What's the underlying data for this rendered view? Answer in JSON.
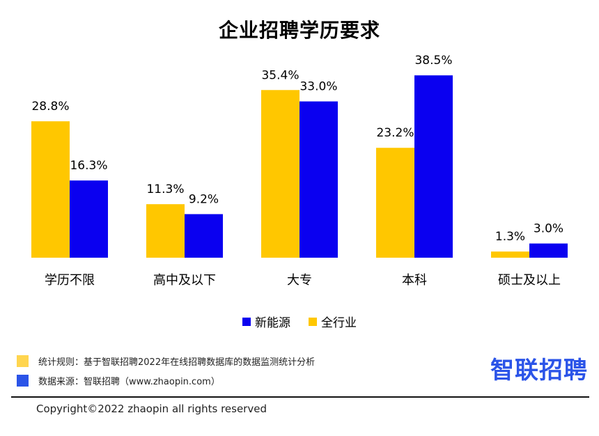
{
  "chart_data": {
    "type": "bar",
    "title": "企业招聘学历要求",
    "categories": [
      "学历不限",
      "高中及以下",
      "大专",
      "本科",
      "硕士及以上"
    ],
    "series": [
      {
        "name": "全行业",
        "color": "#FFC700",
        "values": [
          28.8,
          11.3,
          35.4,
          23.2,
          1.3
        ],
        "labels": [
          "28.8%",
          "11.3%",
          "35.4%",
          "23.2%",
          "1.3%"
        ]
      },
      {
        "name": "新能源",
        "color": "#0A00F0",
        "values": [
          16.3,
          9.2,
          33.0,
          38.5,
          3.0
        ],
        "labels": [
          "16.3%",
          "9.2%",
          "33.0%",
          "38.5%",
          "3.0%"
        ]
      }
    ],
    "legend": [
      "新能源",
      "全行业"
    ],
    "legend_position": "bottom",
    "grid": false,
    "ylim": [
      0,
      40
    ],
    "xlabel": "",
    "ylabel": ""
  },
  "footer": {
    "rule_text": "统计规则：基于智联招聘2022年在线招聘数据库的数据监测统计分析",
    "source_text": "数据来源：智联招聘（www.zhaopin.com）",
    "rule_color": "#FFD54F",
    "source_color": "#2B54E8",
    "brand": "智联招聘",
    "copyright": "Copyright©2022 zhaopin all rights reserved"
  }
}
